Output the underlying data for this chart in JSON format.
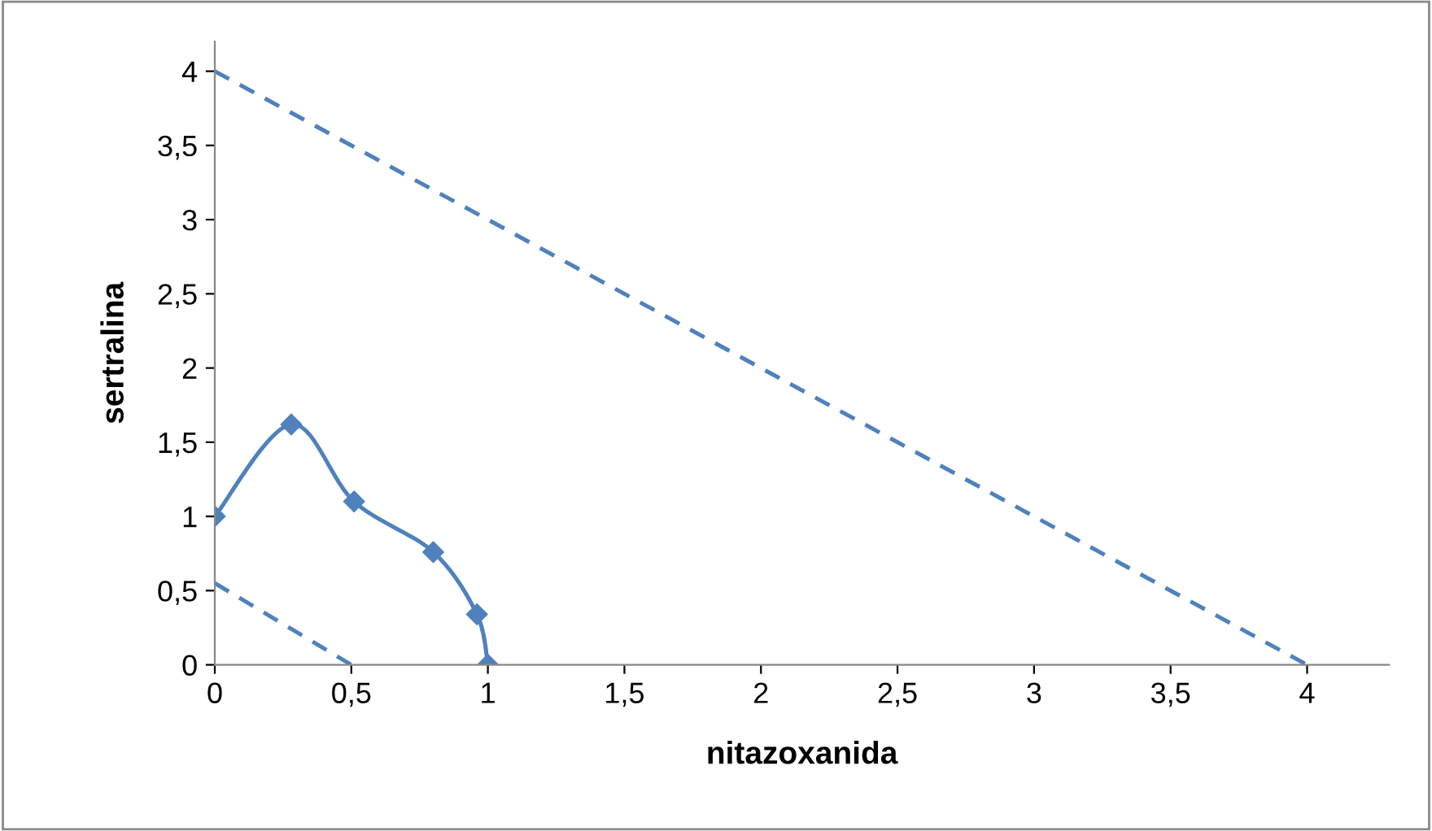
{
  "chart_data": {
    "type": "line",
    "xlabel": "nitazoxanida",
    "ylabel": "sertralina",
    "series": [
      {
        "color": "#4f81bd",
        "x": [
          0,
          0.28,
          0.51,
          0.8,
          0.96,
          1.0
        ],
        "values": [
          1.0,
          1.62,
          1.1,
          0.76,
          0.34,
          0
        ],
        "marker": "diamond",
        "line_style": "solid"
      },
      {
        "color": "#4f81bd",
        "x": [
          0,
          4
        ],
        "values": [
          4,
          0
        ],
        "marker": "none",
        "line_style": "dashed"
      },
      {
        "color": "#4f81bd",
        "x": [
          0,
          0.5
        ],
        "values": [
          0.55,
          0
        ],
        "marker": "none",
        "line_style": "dashed"
      }
    ],
    "xlim": [
      0,
      4.3
    ],
    "ylim": [
      0,
      4.2
    ],
    "xticks": [
      0,
      {
        "value": 0.5,
        "label": "0,5"
      },
      1,
      {
        "value": 1.5,
        "label": "1,5"
      },
      2,
      {
        "value": 2.5,
        "label": "2,5"
      },
      3,
      {
        "value": 3.5,
        "label": "3,5"
      },
      4
    ],
    "yticks": [
      0,
      {
        "value": 0.5,
        "label": "0,5"
      },
      1,
      {
        "value": 1.5,
        "label": "1,5"
      },
      2,
      {
        "value": 2.5,
        "label": "2,5"
      },
      3,
      {
        "value": 3.5,
        "label": "3,5"
      },
      4
    ],
    "grid": false,
    "legend": false
  }
}
